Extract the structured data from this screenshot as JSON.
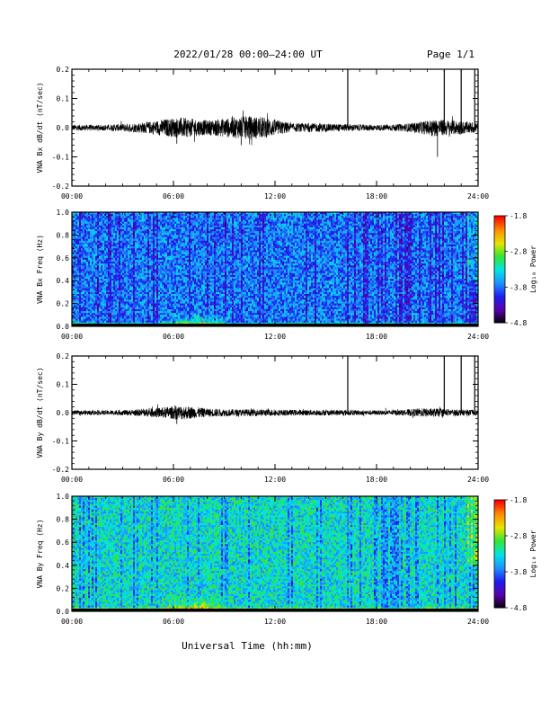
{
  "header": {
    "title": "2022/01/28  00:00–24:00 UT",
    "page": "Page 1/1"
  },
  "xaxis": {
    "label": "Universal Time (hh:mm)",
    "ticks": [
      "00:00",
      "06:00",
      "12:00",
      "18:00",
      "24:00"
    ],
    "range_hours": [
      0,
      24
    ]
  },
  "colors": {
    "trace": "#000000",
    "colormap": [
      "#000000",
      "#5a00a8",
      "#1d1df0",
      "#1e90ff",
      "#00e5e5",
      "#33e533",
      "#e5e500",
      "#ff8c00",
      "#ff0000"
    ]
  },
  "chart_data": [
    {
      "type": "line",
      "ylabel": "VNA Bx dB/dt (nT/sec)",
      "ylim": [
        -0.2,
        0.2
      ],
      "yticks": [
        "0.2",
        "0.1",
        "0.0",
        "-0.1",
        "-0.2"
      ],
      "envelope": {
        "x_hours": [
          0,
          2,
          3.5,
          4.5,
          5.5,
          6.5,
          8,
          9.5,
          10.5,
          11.5,
          13,
          14.5,
          16,
          18,
          19.5,
          20.5,
          21.5,
          22.5,
          23.5,
          24
        ],
        "amplitude": [
          0.01,
          0.01,
          0.015,
          0.02,
          0.03,
          0.035,
          0.025,
          0.035,
          0.04,
          0.035,
          0.015,
          0.015,
          0.012,
          0.01,
          0.012,
          0.02,
          0.03,
          0.025,
          0.02,
          0.02
        ]
      },
      "spikes": [
        {
          "x_hour": 16.3,
          "y": 0.2
        },
        {
          "x_hour": 22.0,
          "y": 0.2
        },
        {
          "x_hour": 23.0,
          "y": 0.2
        },
        {
          "x_hour": 23.8,
          "y": 0.2
        }
      ],
      "dips": [
        {
          "x_hour": 21.6,
          "y": -0.1
        },
        {
          "x_hour": 10.0,
          "y": -0.06
        },
        {
          "x_hour": 6.2,
          "y": -0.055
        }
      ]
    },
    {
      "type": "heatmap",
      "ylabel": "VNA Bx Freq (Hz)",
      "ylim": [
        0.0,
        1.0
      ],
      "yticks": [
        "1.0",
        "0.8",
        "0.6",
        "0.4",
        "0.2",
        "0.0"
      ],
      "colorbar": {
        "label": "Log₁₀ Power",
        "range": [
          -4.8,
          -1.8
        ],
        "ticks": [
          "-1.8",
          "-2.8",
          "-3.8",
          "-4.8"
        ]
      },
      "base_level": 0.35,
      "low_freq_enhancement_hours": [
        5,
        9.5
      ],
      "quiet_vertical_stripes_from_hour": 17
    },
    {
      "type": "line",
      "ylabel": "VNA By dB/dt (nT/sec)",
      "ylim": [
        -0.2,
        0.2
      ],
      "yticks": [
        "0.2",
        "0.1",
        "0.0",
        "-0.1",
        "-0.2"
      ],
      "envelope": {
        "x_hours": [
          0,
          2,
          3.5,
          4.5,
          5.5,
          6.5,
          8,
          9.5,
          10.5,
          11.5,
          13,
          14.5,
          16,
          18,
          19.5,
          20.5,
          21.5,
          22.5,
          23.5,
          24
        ],
        "amplitude": [
          0.008,
          0.008,
          0.01,
          0.015,
          0.02,
          0.025,
          0.015,
          0.012,
          0.012,
          0.012,
          0.01,
          0.01,
          0.01,
          0.008,
          0.01,
          0.015,
          0.015,
          0.012,
          0.01,
          0.01
        ]
      },
      "spikes": [
        {
          "x_hour": 16.3,
          "y": 0.2
        },
        {
          "x_hour": 22.0,
          "y": 0.2
        },
        {
          "x_hour": 23.0,
          "y": 0.2
        },
        {
          "x_hour": 23.8,
          "y": 0.2
        }
      ],
      "dips": [
        {
          "x_hour": 6.2,
          "y": -0.04
        }
      ]
    },
    {
      "type": "heatmap",
      "ylabel": "VNA By Freq (Hz)",
      "ylim": [
        0.0,
        1.0
      ],
      "yticks": [
        "1.0",
        "0.8",
        "0.6",
        "0.4",
        "0.2",
        "0.0"
      ],
      "colorbar": {
        "label": "Log₁₀ Power",
        "range": [
          -4.8,
          -1.8
        ],
        "ticks": [
          "-1.8",
          "-2.8",
          "-3.8",
          "-4.8"
        ]
      },
      "base_level": 0.5,
      "low_freq_enhancement_hours": [
        5,
        9.5
      ],
      "quiet_vertical_stripes_from_hour": 17
    }
  ]
}
